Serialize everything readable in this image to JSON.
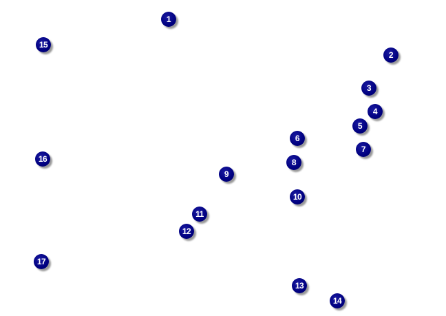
{
  "marker_color": "#000080",
  "markers": [
    {
      "label": "1"
    },
    {
      "label": "2"
    },
    {
      "label": "3"
    },
    {
      "label": "4"
    },
    {
      "label": "5"
    },
    {
      "label": "6"
    },
    {
      "label": "7"
    },
    {
      "label": "8"
    },
    {
      "label": "9"
    },
    {
      "label": "10"
    },
    {
      "label": "11"
    },
    {
      "label": "12"
    },
    {
      "label": "13"
    },
    {
      "label": "14"
    },
    {
      "label": "15"
    },
    {
      "label": "16"
    },
    {
      "label": "17"
    }
  ]
}
